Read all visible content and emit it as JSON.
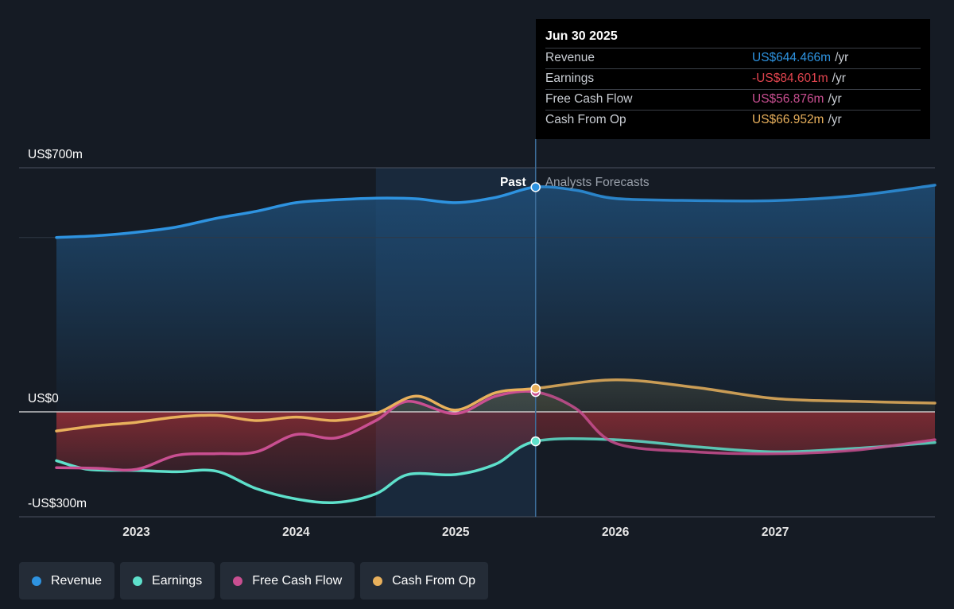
{
  "chart_data": {
    "type": "line",
    "x_unit": "year",
    "xlim": [
      2022.5,
      2028.0
    ],
    "ylim": [
      -300,
      700
    ],
    "y_tick_labels": [
      "US$700m",
      "US$0",
      "-US$300m"
    ],
    "x_tick_labels": [
      "2023",
      "2024",
      "2025",
      "2026",
      "2027"
    ],
    "x_ticks": [
      2023,
      2024,
      2025,
      2026,
      2027
    ],
    "divider_x": 2025.5,
    "past_label": "Past",
    "forecast_label": "Analysts Forecasts",
    "series": [
      {
        "name": "Revenue",
        "color": "#2e93e0",
        "points": [
          [
            2022.5,
            500
          ],
          [
            2022.75,
            505
          ],
          [
            2023.0,
            515
          ],
          [
            2023.25,
            530
          ],
          [
            2023.5,
            555
          ],
          [
            2023.75,
            575
          ],
          [
            2024.0,
            600
          ],
          [
            2024.25,
            608
          ],
          [
            2024.5,
            613
          ],
          [
            2024.75,
            611
          ],
          [
            2025.0,
            600
          ],
          [
            2025.25,
            615
          ],
          [
            2025.5,
            644.5
          ],
          [
            2025.75,
            636
          ],
          [
            2026.0,
            612
          ],
          [
            2026.5,
            606
          ],
          [
            2027.0,
            606
          ],
          [
            2027.5,
            620
          ],
          [
            2028.0,
            650
          ]
        ]
      },
      {
        "name": "Earnings",
        "color": "#5ee0cb",
        "points": [
          [
            2022.5,
            -140
          ],
          [
            2022.7,
            -165
          ],
          [
            2023.0,
            -168
          ],
          [
            2023.25,
            -172
          ],
          [
            2023.5,
            -170
          ],
          [
            2023.75,
            -220
          ],
          [
            2024.0,
            -250
          ],
          [
            2024.25,
            -260
          ],
          [
            2024.5,
            -235
          ],
          [
            2024.7,
            -180
          ],
          [
            2025.0,
            -180
          ],
          [
            2025.25,
            -150
          ],
          [
            2025.5,
            -84.6
          ],
          [
            2026.0,
            -80
          ],
          [
            2026.5,
            -100
          ],
          [
            2027.0,
            -115
          ],
          [
            2027.5,
            -105
          ],
          [
            2028.0,
            -88
          ]
        ]
      },
      {
        "name": "Free Cash Flow",
        "color": "#c94f91",
        "points": [
          [
            2022.5,
            -160
          ],
          [
            2022.75,
            -162
          ],
          [
            2023.0,
            -165
          ],
          [
            2023.25,
            -125
          ],
          [
            2023.5,
            -120
          ],
          [
            2023.75,
            -115
          ],
          [
            2024.0,
            -65
          ],
          [
            2024.25,
            -75
          ],
          [
            2024.5,
            -25
          ],
          [
            2024.7,
            30
          ],
          [
            2025.0,
            -5
          ],
          [
            2025.25,
            45
          ],
          [
            2025.5,
            56.9
          ],
          [
            2025.75,
            10
          ],
          [
            2026.0,
            -90
          ],
          [
            2026.5,
            -115
          ],
          [
            2027.0,
            -120
          ],
          [
            2027.5,
            -110
          ],
          [
            2028.0,
            -80
          ]
        ]
      },
      {
        "name": "Cash From Op",
        "color": "#e8b05c",
        "points": [
          [
            2022.5,
            -55
          ],
          [
            2022.75,
            -40
          ],
          [
            2023.0,
            -30
          ],
          [
            2023.25,
            -15
          ],
          [
            2023.5,
            -10
          ],
          [
            2023.75,
            -25
          ],
          [
            2024.0,
            -15
          ],
          [
            2024.25,
            -25
          ],
          [
            2024.5,
            -5
          ],
          [
            2024.75,
            45
          ],
          [
            2025.0,
            5
          ],
          [
            2025.25,
            55
          ],
          [
            2025.5,
            67
          ],
          [
            2026.0,
            92
          ],
          [
            2026.5,
            70
          ],
          [
            2027.0,
            38
          ],
          [
            2027.5,
            30
          ],
          [
            2028.0,
            25
          ]
        ]
      }
    ],
    "tooltip": {
      "date": "Jun 30 2025",
      "rows": [
        {
          "label": "Revenue",
          "value": "US$644.466m",
          "unit": "/yr",
          "color": "#2e93e0"
        },
        {
          "label": "Earnings",
          "value": "-US$84.601m",
          "unit": "/yr",
          "color": "#e0444e"
        },
        {
          "label": "Free Cash Flow",
          "value": "US$56.876m",
          "unit": "/yr",
          "color": "#c94f91"
        },
        {
          "label": "Cash From Op",
          "value": "US$66.952m",
          "unit": "/yr",
          "color": "#e8b05c"
        }
      ]
    }
  },
  "legend": [
    {
      "label": "Revenue",
      "color": "#2e93e0"
    },
    {
      "label": "Earnings",
      "color": "#5ee0cb"
    },
    {
      "label": "Free Cash Flow",
      "color": "#c94f91"
    },
    {
      "label": "Cash From Op",
      "color": "#e8b05c"
    }
  ]
}
